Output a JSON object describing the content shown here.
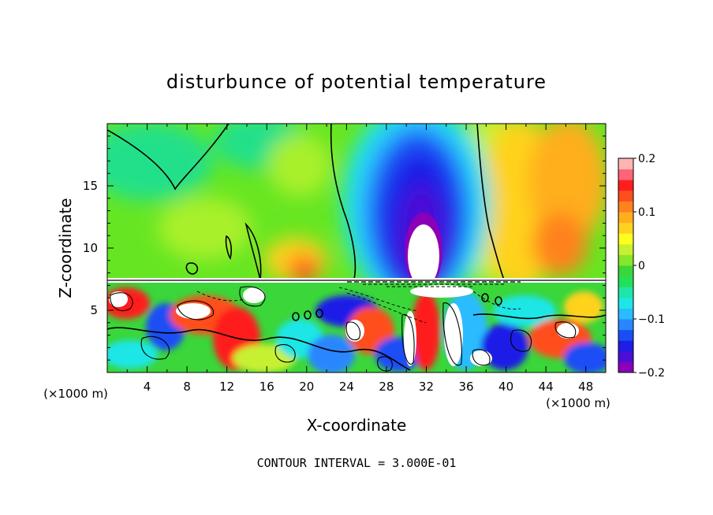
{
  "chart_data": {
    "type": "heatmap",
    "title": "disturbunce of potential temperature",
    "xlabel": "X-coordinate",
    "ylabel": "Z-coordinate",
    "x_unit": "(×1000 m)",
    "z_unit": "(×1000 m)",
    "xlim": [
      0,
      50
    ],
    "ylim": [
      0,
      20
    ],
    "x_ticks": [
      4,
      8,
      12,
      16,
      20,
      24,
      28,
      32,
      36,
      40,
      44,
      48
    ],
    "y_ticks": [
      5,
      10,
      15
    ],
    "colorbar": {
      "range": [
        -0.2,
        0.2
      ],
      "tick_labels": [
        "0.2",
        "0.1",
        "0",
        "−0.1",
        "−0.2"
      ],
      "tick_values": [
        0.2,
        0.1,
        0,
        -0.1,
        -0.2
      ],
      "colors": [
        "#8a00b8",
        "#4b0fd6",
        "#1e1ee6",
        "#1a4ef5",
        "#2a86ff",
        "#2abcff",
        "#1ee6e6",
        "#1ee6a8",
        "#22e05a",
        "#3ad63a",
        "#86e62a",
        "#c8f032",
        "#ffff1e",
        "#ffd21e",
        "#ffae1e",
        "#ff821e",
        "#ff4e1e",
        "#ff1e1e",
        "#ff6478",
        "#ffb4b4"
      ]
    },
    "footer": "CONTOUR INTERVAL = 3.000E-01"
  }
}
